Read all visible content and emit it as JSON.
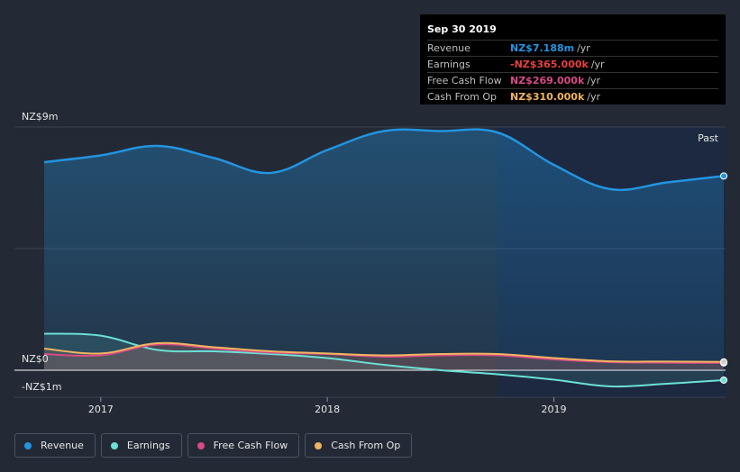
{
  "chart_data": {
    "type": "area",
    "x": [
      2016.75,
      2017.0,
      2017.25,
      2017.5,
      2017.75,
      2018.0,
      2018.25,
      2018.5,
      2018.75,
      2019.0,
      2019.25,
      2019.5,
      2019.75
    ],
    "series": [
      {
        "name": "Revenue",
        "color": "#2394df",
        "values": [
          7.7,
          7.95,
          8.3,
          7.85,
          7.3,
          8.15,
          8.85,
          8.85,
          8.8,
          7.6,
          6.7,
          6.95,
          7.188
        ]
      },
      {
        "name": "Earnings",
        "color": "#6ce0d5",
        "values": [
          1.35,
          1.28,
          0.75,
          0.7,
          0.6,
          0.45,
          0.2,
          0.0,
          -0.15,
          -0.35,
          -0.6,
          -0.5,
          -0.365
        ]
      },
      {
        "name": "Free Cash Flow",
        "color": "#d74a84",
        "values": [
          0.6,
          0.55,
          0.95,
          0.8,
          0.65,
          0.6,
          0.5,
          0.55,
          0.55,
          0.4,
          0.3,
          0.28,
          0.269
        ]
      },
      {
        "name": "Cash From Op",
        "color": "#f0b462",
        "values": [
          0.8,
          0.62,
          1.0,
          0.85,
          0.7,
          0.62,
          0.55,
          0.6,
          0.6,
          0.45,
          0.33,
          0.32,
          0.31
        ]
      }
    ],
    "y_axis_labels": [
      "NZ$9m",
      "NZ$0",
      "-NZ$1m"
    ],
    "ylim": [
      -1,
      9
    ],
    "x_ticks": [
      {
        "value": 2017.0,
        "label": "2017"
      },
      {
        "value": 2018.0,
        "label": "2018"
      },
      {
        "value": 2019.0,
        "label": "2019"
      }
    ],
    "past_start": 2018.75,
    "past_label": "Past",
    "grid": true
  },
  "tooltip": {
    "date": "Sep 30 2019",
    "rows": [
      {
        "label": "Revenue",
        "value": "NZ$7.188m",
        "unit": "/yr",
        "color": "#2394df"
      },
      {
        "label": "Earnings",
        "value": "-NZ$365.000k",
        "unit": "/yr",
        "color": "#e8403d"
      },
      {
        "label": "Free Cash Flow",
        "value": "NZ$269.000k",
        "unit": "/yr",
        "color": "#d74a84"
      },
      {
        "label": "Cash From Op",
        "value": "NZ$310.000k",
        "unit": "/yr",
        "color": "#f0b462"
      }
    ]
  },
  "legend": [
    {
      "label": "Revenue",
      "color": "#2394df"
    },
    {
      "label": "Earnings",
      "color": "#6ce0d5"
    },
    {
      "label": "Free Cash Flow",
      "color": "#d74a84"
    },
    {
      "label": "Cash From Op",
      "color": "#f0b462"
    }
  ]
}
